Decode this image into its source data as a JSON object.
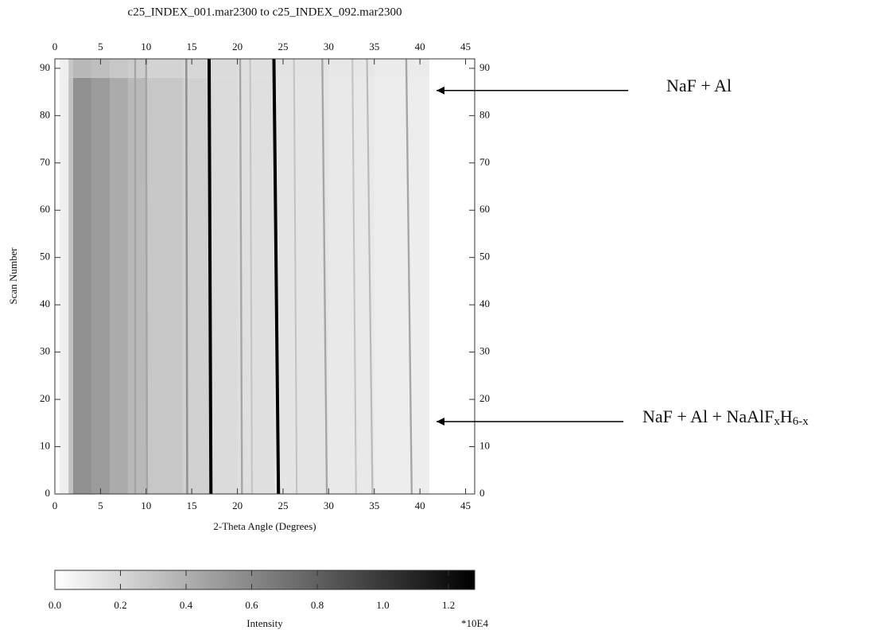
{
  "chart_data": {
    "type": "heatmap",
    "title": "c25_INDEX_001.mar2300 to c25_INDEX_092.mar2300",
    "x_label": "2-Theta Angle (Degrees)",
    "y_label": "Scan Number",
    "xlim": [
      0,
      46
    ],
    "ylim": [
      0,
      92
    ],
    "xticks": [
      0,
      5,
      10,
      15,
      20,
      25,
      30,
      35,
      40,
      45
    ],
    "yticks": [
      0,
      10,
      20,
      30,
      40,
      50,
      60,
      70,
      80,
      90
    ],
    "xbins": [
      0.5,
      1.5,
      2,
      4,
      6,
      8,
      10,
      14,
      17,
      20,
      24,
      30,
      35,
      41
    ],
    "ybins": [
      0,
      88,
      92
    ],
    "values": [
      [
        0.08,
        0.3,
        0.55,
        0.5,
        0.42,
        0.35,
        0.28,
        0.23,
        0.18,
        0.16,
        0.13,
        0.11,
        0.09
      ],
      [
        0.08,
        0.28,
        0.35,
        0.32,
        0.28,
        0.25,
        0.22,
        0.2,
        0.18,
        0.16,
        0.14,
        0.12,
        0.1
      ]
    ],
    "peaks": [
      {
        "x": [
          8.8,
          8.8
        ],
        "value": 0.45
      },
      {
        "x": [
          10.1,
          10.0
        ],
        "value": 0.45
      },
      {
        "x": [
          14.5,
          14.4
        ],
        "value": 0.55
      },
      {
        "x": [
          17.1,
          16.9
        ],
        "value": 1.28
      },
      {
        "x": [
          20.5,
          20.3
        ],
        "value": 0.45
      },
      {
        "x": [
          21.6,
          21.4
        ],
        "value": 0.3
      },
      {
        "x": [
          24.5,
          24.0
        ],
        "value": 1.28
      },
      {
        "x": [
          26.5,
          26.2
        ],
        "value": 0.3
      },
      {
        "x": [
          29.8,
          29.3
        ],
        "value": 0.45
      },
      {
        "x": [
          33.0,
          32.6
        ],
        "value": 0.3
      },
      {
        "x": [
          34.8,
          34.2
        ],
        "value": 0.35
      },
      {
        "x": [
          39.1,
          38.5
        ],
        "value": 0.45
      }
    ],
    "colorscale": [
      "#ffffff",
      "#000000"
    ],
    "colorbar": {
      "label": "Intensity",
      "multiplier": "*10E4",
      "clim": [
        0,
        1.28
      ],
      "ticks": [
        {
          "value": 0,
          "label": "0.0"
        },
        0.2,
        0.4,
        0.6,
        0.8,
        {
          "value": 1,
          "label": "1.0"
        },
        1.2
      ]
    },
    "annotations": [
      {
        "y": 88,
        "parts": [
          {
            "text": "NaF + Al"
          }
        ]
      },
      {
        "y": 18,
        "parts": [
          {
            "text": "NaF + Al + NaAlF"
          },
          {
            "text": "x",
            "sub": true
          },
          {
            "text": "H"
          },
          {
            "text": "6-x",
            "sub": true
          }
        ]
      }
    ]
  }
}
